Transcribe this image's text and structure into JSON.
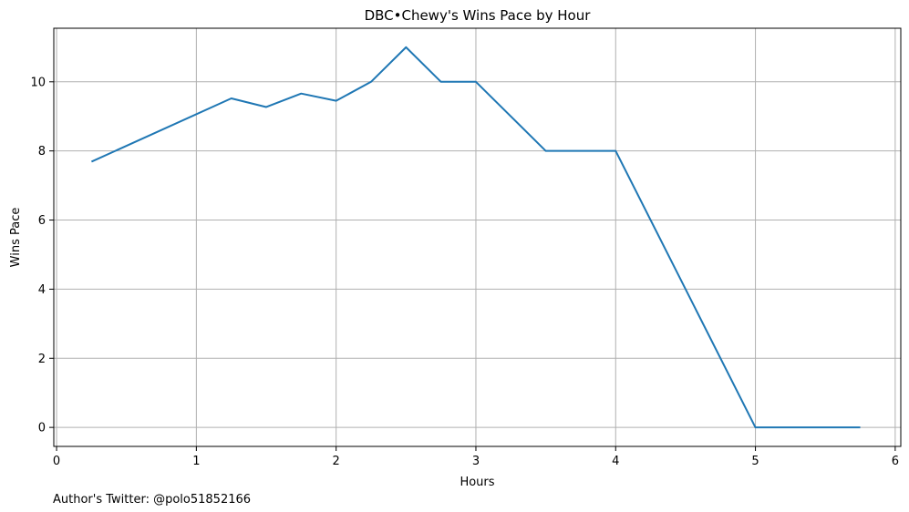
{
  "footer": {
    "author": "Author's Twitter: @polo51852166"
  },
  "chart_data": {
    "type": "line",
    "title": "DBC•Chewy's Wins Pace by Hour",
    "xlabel": "Hours",
    "ylabel": "Wins Pace",
    "xlim": [
      -0.02,
      6.04
    ],
    "ylim": [
      -0.55,
      11.55
    ],
    "xticks": [
      0,
      1,
      2,
      3,
      4,
      5,
      6
    ],
    "yticks": [
      0,
      2,
      4,
      6,
      8,
      10
    ],
    "grid": true,
    "legend": "none",
    "series": [
      {
        "color": "#1f77b4",
        "x": [
          0.25,
          1.25,
          1.5,
          1.75,
          2.0,
          2.25,
          2.5,
          2.75,
          3.0,
          3.5,
          4.0,
          5.0,
          5.75
        ],
        "y": [
          7.69,
          9.52,
          9.27,
          9.66,
          9.45,
          10.0,
          11.0,
          10.0,
          10.0,
          8.0,
          8.0,
          0.0,
          0.0
        ]
      }
    ]
  }
}
